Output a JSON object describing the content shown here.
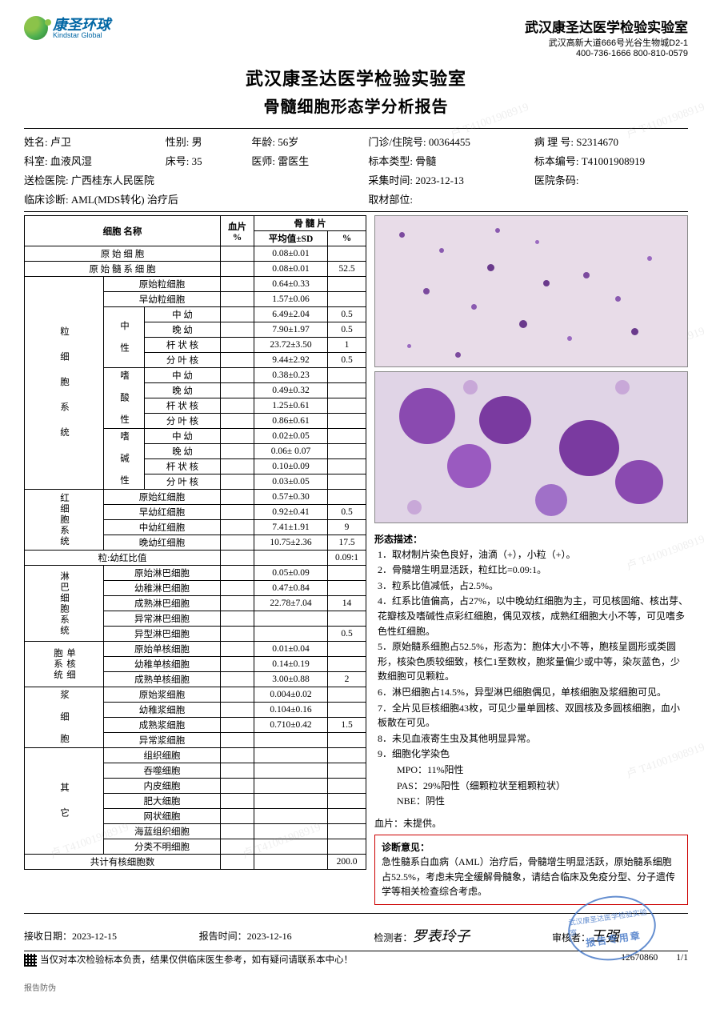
{
  "logo": {
    "cn": "康圣环球",
    "en": "Kindstar Global"
  },
  "lab": {
    "name": "武汉康圣达医学检验实验室",
    "address": "武汉高新大道666号光谷生物城D2-1",
    "phone": "400-736-1666  800-810-0579"
  },
  "report_title": {
    "line1": "武汉康圣达医学检验实验室",
    "line2": "骨髓细胞形态学分析报告"
  },
  "patient": {
    "name_lbl": "姓名:",
    "name": "卢卫",
    "sex_lbl": "性别:",
    "sex": "男",
    "age_lbl": "年龄:",
    "age": "56岁",
    "visit_lbl": "门诊/住院号:",
    "visit": "00364455",
    "path_lbl": "病 理 号:",
    "path": "S2314670",
    "dept_lbl": "科室:",
    "dept": "血液风湿",
    "bed_lbl": "床号:",
    "bed": "35",
    "doctor_lbl": "医师:",
    "doctor": "雷医生",
    "spectype_lbl": "标本类型:",
    "spectype": "骨髓",
    "specno_lbl": "标本编号:",
    "specno": "T41001908919",
    "hosp_lbl": "送检医院:",
    "hosp": "广西桂东人民医院",
    "collect_lbl": "采集时间:",
    "collect": "2023-12-13",
    "barcode_lbl": "医院条码:",
    "diag_lbl": "临床诊断:",
    "diag": "AML(MDS转化) 治疗后",
    "site_lbl": "取材部位:"
  },
  "table": {
    "hdr": {
      "cellname": "细胞\n名称",
      "smear": "血片\n%",
      "marrow": "骨 髓 片",
      "avg": "平均值±SD",
      "pct": "%"
    },
    "groups": [
      {
        "label": "原 始 细 胞",
        "span": 3,
        "avg": "0.08±0.01",
        "pct": ""
      },
      {
        "label": "原 始 髓 系 细 胞",
        "span": 3,
        "avg": "0.08±0.01",
        "pct": "52.5"
      }
    ],
    "gran_sys": "粒 细 胞 系 统",
    "gran_rows_top": [
      {
        "name": "原始粒细胞",
        "avg": "0.64±0.33",
        "pct": ""
      },
      {
        "name": "早幼粒细胞",
        "avg": "1.57±0.06",
        "pct": ""
      }
    ],
    "neut": "中 性",
    "neut_rows": [
      {
        "name": "中   幼",
        "avg": "6.49±2.04",
        "pct": "0.5"
      },
      {
        "name": "晚   幼",
        "avg": "7.90±1.97",
        "pct": "0.5"
      },
      {
        "name": "杆 状 核",
        "avg": "23.72±3.50",
        "pct": "1"
      },
      {
        "name": "分 叶 核",
        "avg": "9.44±2.92",
        "pct": "0.5"
      }
    ],
    "eos": "嗜 酸 性",
    "eos_rows": [
      {
        "name": "中   幼",
        "avg": "0.38±0.23",
        "pct": ""
      },
      {
        "name": "晚   幼",
        "avg": "0.49±0.32",
        "pct": ""
      },
      {
        "name": "杆 状 核",
        "avg": "1.25±0.61",
        "pct": ""
      },
      {
        "name": "分 叶 核",
        "avg": "0.86±0.61",
        "pct": ""
      }
    ],
    "bas": "嗜 碱 性",
    "bas_rows": [
      {
        "name": "中   幼",
        "avg": "0.02±0.05",
        "pct": ""
      },
      {
        "name": "晚   幼",
        "avg": "0.06± 0.07",
        "pct": ""
      },
      {
        "name": "杆 状 核",
        "avg": "0.10±0.09",
        "pct": ""
      },
      {
        "name": "分 叶 核",
        "avg": "0.03±0.05",
        "pct": ""
      }
    ],
    "eryth": "红细胞系统",
    "eryth_rows": [
      {
        "name": "原始红细胞",
        "avg": "0.57±0.30",
        "pct": ""
      },
      {
        "name": "早幼红细胞",
        "avg": "0.92±0.41",
        "pct": "0.5"
      },
      {
        "name": "中幼红细胞",
        "avg": "7.41±1.91",
        "pct": "9"
      },
      {
        "name": "晚幼红细胞",
        "avg": "10.75±2.36",
        "pct": "17.5"
      }
    ],
    "ratio": {
      "name": "粒:幼红比值",
      "avg": "",
      "pct": "0.09:1"
    },
    "lymph": "淋巴细胞系统",
    "lymph_rows": [
      {
        "name": "原始淋巴细胞",
        "avg": "0.05±0.09",
        "pct": ""
      },
      {
        "name": "幼稚淋巴细胞",
        "avg": "0.47±0.84",
        "pct": ""
      },
      {
        "name": "成熟淋巴细胞",
        "avg": "22.78±7.04",
        "pct": "14"
      },
      {
        "name": "异常淋巴细胞",
        "avg": "",
        "pct": ""
      },
      {
        "name": "异型淋巴细胞",
        "avg": "",
        "pct": "0.5"
      }
    ],
    "mono": "单核细胞系统",
    "mono_rows": [
      {
        "name": "原始单核细胞",
        "avg": "0.01±0.04",
        "pct": ""
      },
      {
        "name": "幼稚单核细胞",
        "avg": "0.14±0.19",
        "pct": ""
      },
      {
        "name": "成熟单核细胞",
        "avg": "3.00±0.88",
        "pct": "2"
      }
    ],
    "plasma": "浆 细 胞",
    "plasma_rows": [
      {
        "name": "原始浆细胞",
        "avg": "0.004±0.02",
        "pct": ""
      },
      {
        "name": "幼稚浆细胞",
        "avg": "0.104±0.16",
        "pct": ""
      },
      {
        "name": "成熟浆细胞",
        "avg": "0.710±0.42",
        "pct": "1.5"
      },
      {
        "name": "异常浆细胞",
        "avg": "",
        "pct": ""
      }
    ],
    "other": "其 它",
    "other_rows": [
      {
        "name": "组织细胞",
        "avg": "",
        "pct": ""
      },
      {
        "name": "吞噬细胞",
        "avg": "",
        "pct": ""
      },
      {
        "name": "内皮细胞",
        "avg": "",
        "pct": ""
      },
      {
        "name": "肥大细胞",
        "avg": "",
        "pct": ""
      },
      {
        "name": "网状细胞",
        "avg": "",
        "pct": ""
      },
      {
        "name": "海蓝组织细胞",
        "avg": "",
        "pct": ""
      },
      {
        "name": "分类不明细胞",
        "avg": "",
        "pct": ""
      }
    ],
    "total": {
      "name": "共计有核细胞数",
      "pct": "200.0"
    }
  },
  "morphology": {
    "title": "形态描述：",
    "items": [
      "1．取材制片染色良好，油滴（+），小粒（+）。",
      "2．骨髓增生明显活跃，粒红比=0.09:1。",
      "3．粒系比值减低，占2.5%。",
      "4．红系比值偏高，占27%，以中晚幼红细胞为主，可见核固缩、核出芽、花瓣核及嗜碱性点彩红细胞，偶见双核，成熟红细胞大小不等，可见嗜多色性红细胞。",
      "5．原始髓系细胞占52.5%，形态为：胞体大小不等，胞核呈圆形或类圆形，核染色质较细致，核仁1至数枚，胞浆量偏少或中等，染灰蓝色，少数细胞可见颗粒。",
      "6．淋巴细胞占14.5%，异型淋巴细胞偶见，单核细胞及浆细胞可见。",
      "7．全片见巨核细胞43枚，可见少量单圆核、双圆核及多圆核细胞，血小板散在可见。",
      "8．未见血液寄生虫及其他明显异常。",
      "9．细胞化学染色",
      "　　MPO：11%阳性",
      "　　PAS：29%阳性（细颗粒状至粗颗粒状）",
      "　　NBE：阴性"
    ]
  },
  "smear": {
    "lbl": "血片：",
    "val": "未提供。"
  },
  "diagnosis": {
    "title": "诊断意见：",
    "text": "急性髓系白血病（AML）治疗后，骨髓增生明显活跃，原始髓系细胞占52.5%，考虑未完全缓解骨髓象，请结合临床及免疫分型、分子遗传学等相关检查综合考虑。"
  },
  "footer": {
    "recv_lbl": "接收日期：",
    "recv": "2023-12-15",
    "report_lbl": "报告时间：",
    "report": "2023-12-16",
    "examiner_lbl": "检测者：",
    "examiner": "罗表玲子",
    "reviewer_lbl": "审核者：",
    "reviewer": "王强"
  },
  "stamp": {
    "line1": "武汉康圣达医学检验实验室",
    "line2": "报告专用章"
  },
  "disclaimer": "当仅对本次检验标本负责，结果仅供临床医生参考，如有疑问请联系本中心！",
  "serial": "12670860",
  "page": "1/1",
  "anti": "报告防伪",
  "watermark": "卢 T41001908919"
}
